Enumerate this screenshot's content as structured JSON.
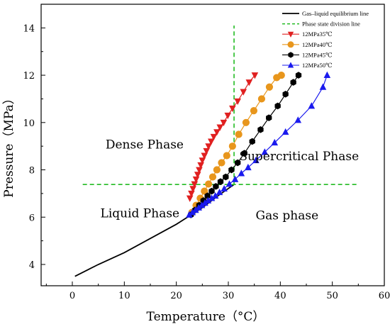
{
  "chart_data": {
    "type": "line",
    "xlabel": "Temperature（°C）",
    "ylabel": "Pressure（MPa）",
    "xlim": [
      -6,
      60
    ],
    "ylim": [
      3.1,
      15.0
    ],
    "xticks": [
      0,
      10,
      20,
      30,
      40,
      50,
      60
    ],
    "yticks": [
      4,
      6,
      8,
      10,
      12,
      14
    ],
    "grid": false,
    "legend_position": "top-right",
    "annotations": [
      {
        "text": "Dense Phase",
        "x": 13.9,
        "y": 8.9
      },
      {
        "text": "Supercritical Phase",
        "x": 43.6,
        "y": 8.4
      },
      {
        "text": "Liquid Phase",
        "x": 13.0,
        "y": 6.0
      },
      {
        "text": "Gas phase",
        "x": 41.3,
        "y": 5.9
      }
    ],
    "series": [
      {
        "name": "Gas–liquid equilibrium line",
        "kind": "line",
        "color": "#000000",
        "x": [
          0.5,
          5,
          10,
          15,
          20,
          25,
          28,
          31.1
        ],
        "y": [
          3.5,
          4.0,
          4.5,
          5.1,
          5.7,
          6.4,
          6.9,
          7.38
        ]
      },
      {
        "name": "Phase state division line",
        "kind": "dashed",
        "color": "#22bb22",
        "segments": [
          {
            "x": [
              31.1,
              31.1
            ],
            "y": [
              7.38,
              14.1
            ]
          },
          {
            "x": [
              2.0,
              55.0
            ],
            "y": [
              7.38,
              7.38
            ]
          }
        ]
      },
      {
        "name": "12MPa35℃",
        "kind": "marker-line",
        "marker": "triangle-down",
        "color": "#e02020",
        "x": [
          22.6,
          22.9,
          23.2,
          23.5,
          23.8,
          24.1,
          24.4,
          24.7,
          25.0,
          25.4,
          25.8,
          26.2,
          26.7,
          27.2,
          27.8,
          28.4,
          29.1,
          29.9,
          30.8,
          31.8,
          32.9,
          34.0,
          35.1
        ],
        "y": [
          6.8,
          7.0,
          7.2,
          7.4,
          7.6,
          7.8,
          8.0,
          8.2,
          8.4,
          8.6,
          8.8,
          9.0,
          9.2,
          9.4,
          9.6,
          9.8,
          10.0,
          10.3,
          10.6,
          10.9,
          11.3,
          11.7,
          12.0
        ]
      },
      {
        "name": "12MPa40℃",
        "kind": "marker-line",
        "marker": "circle",
        "color": "#e8961c",
        "x": [
          23.0,
          23.8,
          24.6,
          25.4,
          26.2,
          27.0,
          27.8,
          28.7,
          29.7,
          30.8,
          32.0,
          33.4,
          34.9,
          36.4,
          37.9,
          39.3,
          40.2
        ],
        "y": [
          6.2,
          6.5,
          6.8,
          7.1,
          7.4,
          7.7,
          8.0,
          8.3,
          8.6,
          9.0,
          9.5,
          10.0,
          10.5,
          11.0,
          11.5,
          11.9,
          12.0
        ]
      },
      {
        "name": "12MPa45℃",
        "kind": "marker-line",
        "marker": "hexagon",
        "color": "#000000",
        "x": [
          22.8,
          23.6,
          24.4,
          25.2,
          26.0,
          26.8,
          27.6,
          28.5,
          29.5,
          30.6,
          31.8,
          33.1,
          34.6,
          36.2,
          37.8,
          39.5,
          41.0,
          42.5,
          43.5
        ],
        "y": [
          6.1,
          6.3,
          6.5,
          6.7,
          6.9,
          7.1,
          7.3,
          7.5,
          7.7,
          8.0,
          8.3,
          8.7,
          9.2,
          9.7,
          10.2,
          10.7,
          11.2,
          11.7,
          12.0
        ]
      },
      {
        "name": "12MPa50℃",
        "kind": "marker-line",
        "marker": "triangle-up",
        "color": "#1a1aee",
        "x": [
          22.5,
          23.1,
          23.7,
          24.3,
          24.9,
          25.5,
          26.1,
          26.8,
          27.5,
          28.3,
          29.2,
          30.2,
          31.3,
          32.5,
          33.8,
          35.3,
          37.0,
          38.9,
          41.0,
          43.4,
          46.0,
          48.2,
          49.0
        ],
        "y": [
          6.1,
          6.2,
          6.3,
          6.4,
          6.5,
          6.6,
          6.7,
          6.8,
          6.9,
          7.05,
          7.2,
          7.4,
          7.6,
          7.85,
          8.1,
          8.4,
          8.75,
          9.15,
          9.6,
          10.1,
          10.7,
          11.5,
          12.0
        ]
      }
    ]
  }
}
